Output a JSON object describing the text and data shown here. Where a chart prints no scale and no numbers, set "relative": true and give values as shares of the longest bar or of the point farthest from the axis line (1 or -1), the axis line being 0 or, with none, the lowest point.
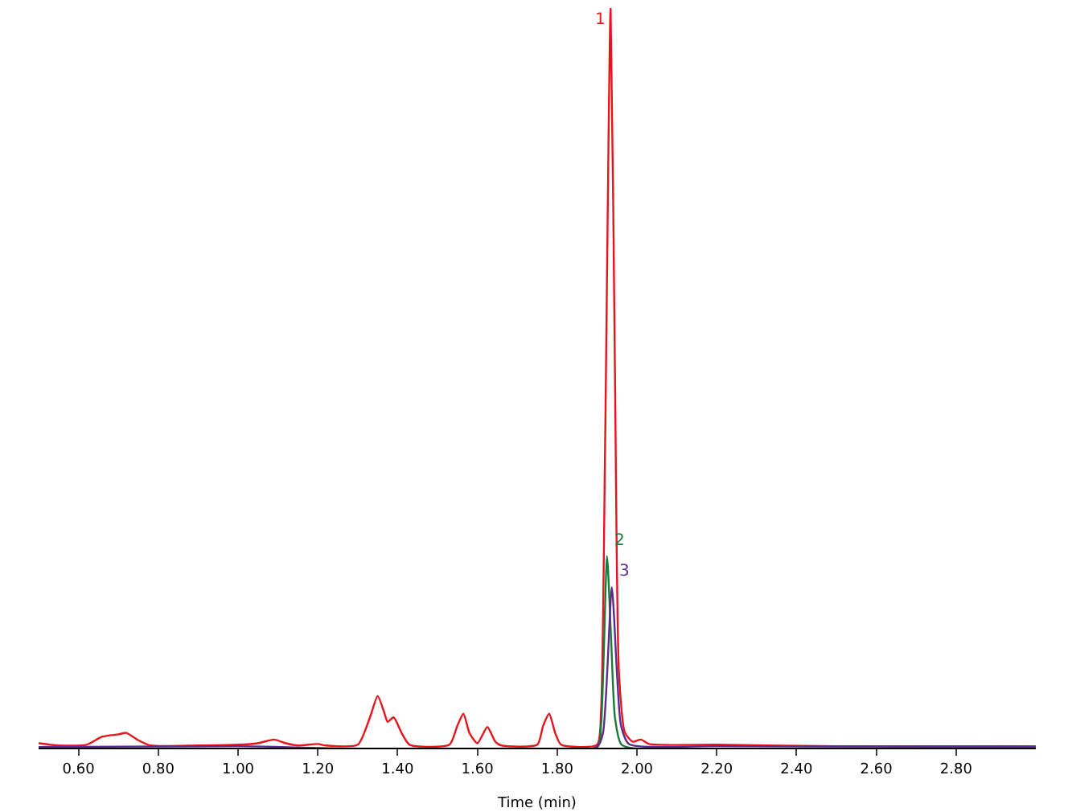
{
  "chart_data": {
    "type": "line",
    "relative": true,
    "xlabel": "Time (min)",
    "xlim": [
      0.5,
      3.0
    ],
    "xticks": [
      {
        "value": 0.6,
        "label": "0.60"
      },
      {
        "value": 0.8,
        "label": "0.80"
      },
      {
        "value": 1.0,
        "label": "1.00"
      },
      {
        "value": 1.2,
        "label": "1.20"
      },
      {
        "value": 1.4,
        "label": "1.40"
      },
      {
        "value": 1.6,
        "label": "1.60"
      },
      {
        "value": 1.8,
        "label": "1.80"
      },
      {
        "value": 2.0,
        "label": "2.00"
      },
      {
        "value": 2.2,
        "label": "2.20"
      },
      {
        "value": 2.4,
        "label": "2.40"
      },
      {
        "value": 2.6,
        "label": "2.60"
      },
      {
        "value": 2.8,
        "label": "2.80"
      }
    ],
    "tick_labels": "x",
    "grid": false,
    "marker": "none",
    "line_style": "solid",
    "series": [
      {
        "color": "#e8141c",
        "x": [
          0.5,
          0.55,
          0.62,
          0.66,
          0.7,
          0.72,
          0.75,
          0.78,
          0.9,
          1.0,
          1.05,
          1.09,
          1.12,
          1.15,
          1.2,
          1.22,
          1.3,
          1.33,
          1.35,
          1.365,
          1.375,
          1.39,
          1.41,
          1.43,
          1.53,
          1.55,
          1.565,
          1.58,
          1.6,
          1.625,
          1.645,
          1.66,
          1.75,
          1.765,
          1.78,
          1.795,
          1.81,
          1.9,
          1.91,
          1.92,
          1.934,
          1.945,
          1.955,
          1.97,
          1.99,
          2.01,
          2.03,
          2.2,
          2.5,
          3.0
        ],
        "values": [
          0.006,
          0.003,
          0.004,
          0.015,
          0.018,
          0.02,
          0.01,
          0.003,
          0.003,
          0.004,
          0.006,
          0.011,
          0.006,
          0.003,
          0.005,
          0.003,
          0.004,
          0.04,
          0.07,
          0.05,
          0.035,
          0.041,
          0.02,
          0.004,
          0.004,
          0.03,
          0.046,
          0.02,
          0.006,
          0.028,
          0.008,
          0.003,
          0.004,
          0.03,
          0.046,
          0.02,
          0.004,
          0.004,
          0.05,
          0.4,
          1.0,
          0.5,
          0.1,
          0.02,
          0.008,
          0.011,
          0.005,
          0.004,
          0.002,
          0.002
        ]
      },
      {
        "color": "#1a7a3a",
        "x": [
          0.5,
          1.9,
          1.91,
          1.925,
          1.935,
          1.945,
          1.96,
          1.98,
          3.0
        ],
        "values": [
          0,
          0.001,
          0.03,
          0.259,
          0.15,
          0.04,
          0.005,
          0,
          0
        ]
      },
      {
        "color": "#5a2d8c",
        "x": [
          0.5,
          1.0,
          1.9,
          1.915,
          1.937,
          1.95,
          1.96,
          1.98,
          2.2,
          3.0
        ],
        "values": [
          0.001,
          0.002,
          0.001,
          0.02,
          0.217,
          0.1,
          0.03,
          0.005,
          0.002,
          0.001
        ]
      }
    ],
    "annotations": [
      {
        "text": "1",
        "x": 1.934,
        "y": 1.0
      },
      {
        "text": "2",
        "x": 1.925,
        "y": 0.259
      },
      {
        "text": "3",
        "x": 1.937,
        "y": 0.217
      }
    ]
  }
}
